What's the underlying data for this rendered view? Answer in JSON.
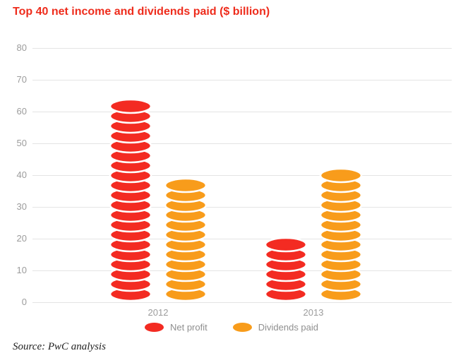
{
  "title": "Top 40 net income and dividends paid ($ billion)",
  "source": "Source: PwC analysis",
  "colors": {
    "title": "#ee2c1c",
    "net_profit": "#f32b22",
    "dividends_paid": "#f89c1b",
    "gridline": "#e4e4e4",
    "axis_text": "#9c9c9c"
  },
  "chart_data": {
    "type": "bar",
    "subtype": "coin-stack",
    "title": "Top 40 net income and dividends paid ($ billion)",
    "categories": [
      "2012",
      "2013"
    ],
    "series": [
      {
        "name": "Net profit",
        "color": "#f32b22",
        "values": [
          63,
          18
        ]
      },
      {
        "name": "Dividends paid",
        "color": "#f89c1b",
        "values": [
          36,
          39
        ]
      }
    ],
    "xlabel": "",
    "ylabel": "",
    "ylim": [
      0,
      80
    ],
    "yticks": [
      0,
      10,
      20,
      30,
      40,
      50,
      60,
      70,
      80
    ],
    "grid": true,
    "legend_position": "bottom",
    "source_note": "Source: PwC analysis"
  }
}
